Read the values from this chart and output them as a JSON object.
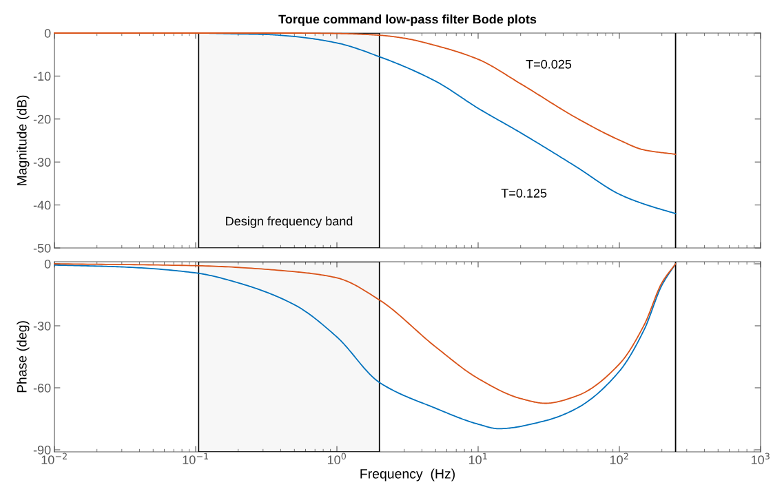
{
  "chart_data": [
    {
      "type": "line",
      "title": "Torque command low-pass filter Bode plots",
      "ylabel": "Magnitude (dB)",
      "log": "x",
      "xlim": [
        0.01,
        1000
      ],
      "xticks": [
        {
          "value": 0.01,
          "label": null
        },
        {
          "value": 0.1,
          "label": null
        },
        {
          "value": 1,
          "label": null
        },
        {
          "value": 10,
          "label": null
        },
        {
          "value": 100,
          "label": null
        },
        {
          "value": 1000,
          "label": null
        }
      ],
      "ylim": [
        -50,
        0
      ],
      "yticks": [
        -50,
        -40,
        -30,
        -20,
        -10,
        0
      ],
      "tick_labels": "y",
      "grid": false,
      "series": [
        {
          "color": "#0072bd",
          "x": [
            0.01,
            0.1,
            0.2,
            0.3,
            0.5,
            1,
            2,
            5,
            10,
            20,
            50,
            100,
            150,
            250
          ],
          "values": [
            0,
            0,
            -0.2,
            -0.3,
            -0.8,
            -2.3,
            -5.5,
            -11.2,
            -17.5,
            -23.2,
            -31.2,
            -37.5,
            -39.8,
            -42
          ]
        },
        {
          "color": "#d95319",
          "x": [
            0.01,
            0.1,
            0.5,
            1,
            2,
            3,
            5,
            10,
            20,
            50,
            100,
            150,
            250
          ],
          "values": [
            0,
            0,
            0,
            -0.1,
            -0.5,
            -1.2,
            -2.9,
            -6.1,
            -11.8,
            -19.8,
            -24.9,
            -27.2,
            -28.2
          ]
        }
      ],
      "bands": [
        {
          "axis": "x",
          "from": 0.105,
          "to": 2,
          "label": "Design frequency band",
          "color": "#000000"
        }
      ],
      "ref_lines": [
        {
          "axis": "x",
          "value": 250,
          "color": "#000000"
        }
      ],
      "annotations": [
        "T=0.025",
        "T=0.125"
      ]
    },
    {
      "type": "line",
      "xlabel": "Frequency  (Hz)",
      "ylabel": "Phase (deg)",
      "log": "x",
      "xlim": [
        0.01,
        1000
      ],
      "xticks": [
        {
          "value": 0.01,
          "label": "10$^{−2}$"
        },
        {
          "value": 0.1,
          "label": "10$^{−1}$"
        },
        {
          "value": 1,
          "label": "10$^{0}$"
        },
        {
          "value": 10,
          "label": "10$^{1}$"
        },
        {
          "value": 100,
          "label": "10$^{2}$"
        },
        {
          "value": 1000,
          "label": "10$^{3}$"
        }
      ],
      "ylim": [
        -91,
        1
      ],
      "yticks": [
        -90,
        -60,
        -30,
        0
      ],
      "grid": false,
      "series": [
        {
          "color": "#0072bd",
          "x": [
            0.01,
            0.03,
            0.1,
            0.2,
            0.5,
            1,
            2,
            5,
            10,
            14,
            30,
            50,
            100,
            150,
            200,
            250
          ],
          "values": [
            -0.6,
            -1.5,
            -4.4,
            -9.2,
            -19.8,
            -35.4,
            -57.4,
            -69.9,
            -77.6,
            -79.8,
            -75.9,
            -69.9,
            -52,
            -31.8,
            -10.4,
            0
          ]
        },
        {
          "color": "#d95319",
          "x": [
            0.01,
            0.1,
            0.5,
            1,
            2,
            5,
            10,
            20,
            30,
            50,
            100,
            150,
            200,
            250
          ],
          "values": [
            0,
            -0.9,
            -3.8,
            -6.8,
            -17.5,
            -40.2,
            -55.5,
            -65.2,
            -67.5,
            -63.9,
            -48.5,
            -29.5,
            -9.2,
            0
          ]
        }
      ],
      "bands": [
        {
          "axis": "x",
          "from": 0.105,
          "to": 2,
          "color": "#000000"
        }
      ],
      "ref_lines": [
        {
          "axis": "x",
          "value": 250,
          "color": "#000000"
        }
      ]
    }
  ]
}
